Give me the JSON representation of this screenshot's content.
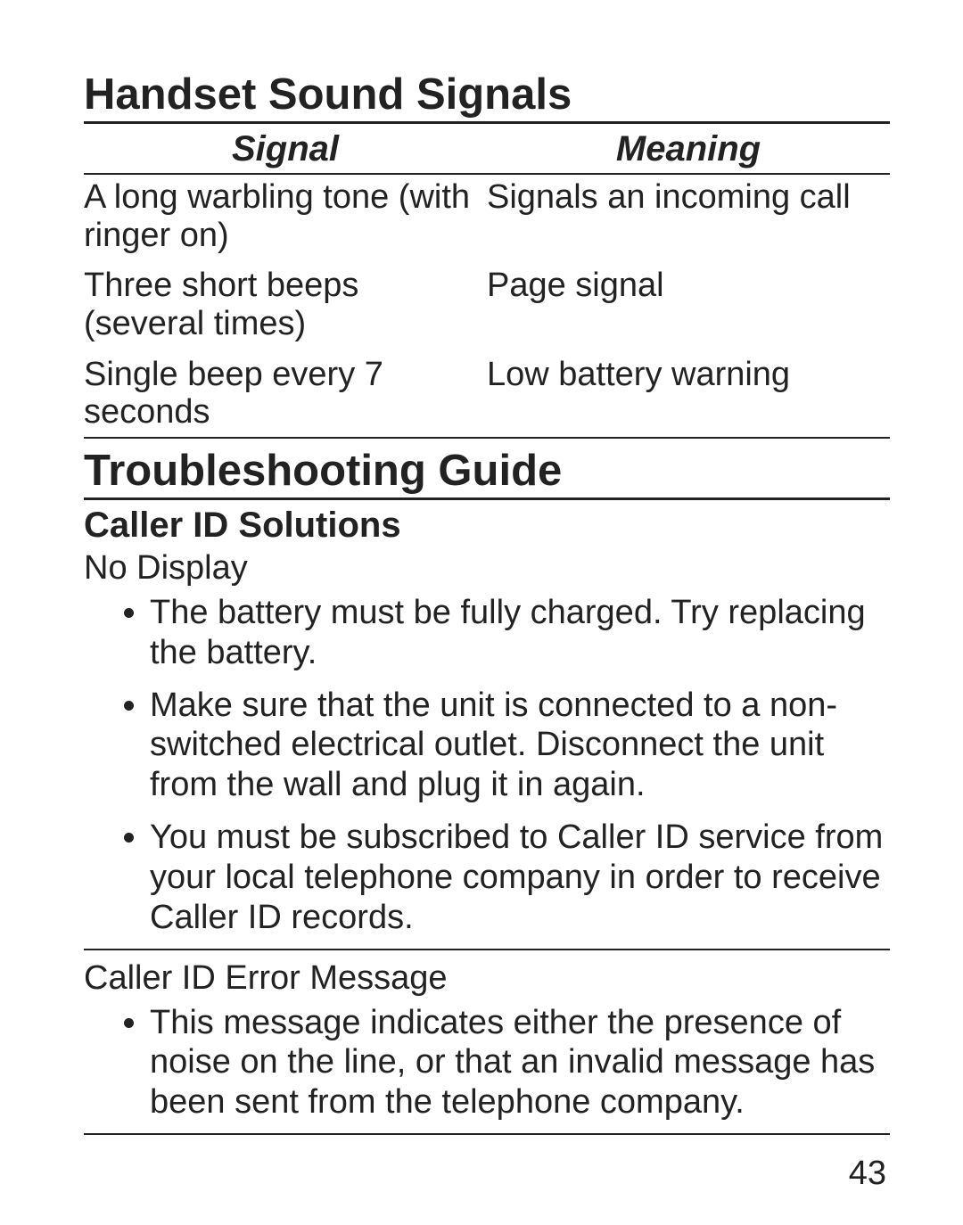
{
  "colors": {
    "text": "#222222",
    "background": "#ffffff",
    "rule": "#222222"
  },
  "typography": {
    "section_title_pt": 49,
    "table_header_pt": 40,
    "body_pt": 38,
    "subsection_pt": 40,
    "weight_bold": 700,
    "weight_regular": 400
  },
  "sections": {
    "sound_signals": {
      "title": "Handset Sound Signals",
      "table": {
        "columns": [
          "Signal",
          "Meaning"
        ],
        "rows": [
          {
            "signal": "A long warbling tone (with ringer on)",
            "meaning": "Signals an incoming call"
          },
          {
            "signal": "Three short beeps (several times)",
            "meaning": "Page signal"
          },
          {
            "signal": "Single beep every 7 seconds",
            "meaning": "Low battery warning"
          }
        ]
      }
    },
    "troubleshooting": {
      "title": "Troubleshooting Guide",
      "subsection_title": "Caller ID Solutions",
      "issues": [
        {
          "name": "No Display",
          "bullets": [
            "The battery must be fully charged. Try replacing the battery.",
            "Make sure that the unit is connected to a non-switched electrical outlet. Disconnect the unit from the wall and plug it in again.",
            "You must be subscribed to Caller ID service from your local telephone company in order to receive Caller ID records."
          ]
        },
        {
          "name": "Caller ID Error Message",
          "bullets": [
            "This message indicates either the presence of noise on the line, or that an invalid message has been sent from the telephone company."
          ]
        }
      ]
    }
  },
  "page_number": "43"
}
